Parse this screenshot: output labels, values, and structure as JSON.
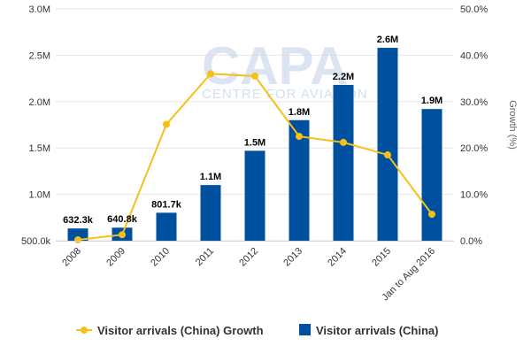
{
  "chart_data": {
    "type": "bar+line",
    "categories": [
      "2008",
      "2009",
      "2010",
      "2011",
      "2012",
      "2013",
      "2014",
      "2015",
      "Jan to Aug 2016"
    ],
    "series": [
      {
        "name": "Visitor arrivals (China)",
        "type": "bar",
        "axis": "left",
        "color": "#0050a0",
        "values": [
          632300,
          640800,
          801700,
          1100000,
          1470000,
          1800000,
          2180000,
          2580000,
          1920000
        ],
        "labels": [
          "632.3k",
          "640.8k",
          "801.7k",
          "1.1M",
          "1.5M",
          "1.8M",
          "2.2M",
          "2.6M",
          "1.9M"
        ]
      },
      {
        "name": "Visitor arrivals (China) Growth",
        "type": "line",
        "axis": "right",
        "color": "#f5c018",
        "values": [
          0.2,
          1.3,
          25.1,
          36.0,
          35.5,
          22.5,
          21.2,
          18.5,
          5.7
        ]
      }
    ],
    "left_axis": {
      "range": [
        500000,
        3000000
      ],
      "ticks": [
        500000,
        1000000,
        1500000,
        2000000,
        2500000,
        3000000
      ],
      "tick_labels": [
        "500.0k",
        "1.0M",
        "1.5M",
        "2.0M",
        "2.5M",
        "3.0M"
      ]
    },
    "right_axis": {
      "title": "Growth (%)",
      "range": [
        0,
        50
      ],
      "ticks": [
        0,
        10,
        20,
        30,
        40,
        50
      ],
      "tick_labels": [
        "0.0%",
        "10.0%",
        "20.0%",
        "30.0%",
        "40.0%",
        "50.0%"
      ]
    },
    "grid": true,
    "legend_position": "bottom",
    "legend": [
      {
        "label": "Visitor arrivals (China) Growth",
        "symbol": "line-marker",
        "color": "#f5c018"
      },
      {
        "label": "Visitor arrivals (China)",
        "symbol": "square",
        "color": "#0050a0"
      }
    ]
  },
  "watermark": {
    "logo": "CAPA",
    "subtitle": "CENTRE FOR AVIATION"
  }
}
